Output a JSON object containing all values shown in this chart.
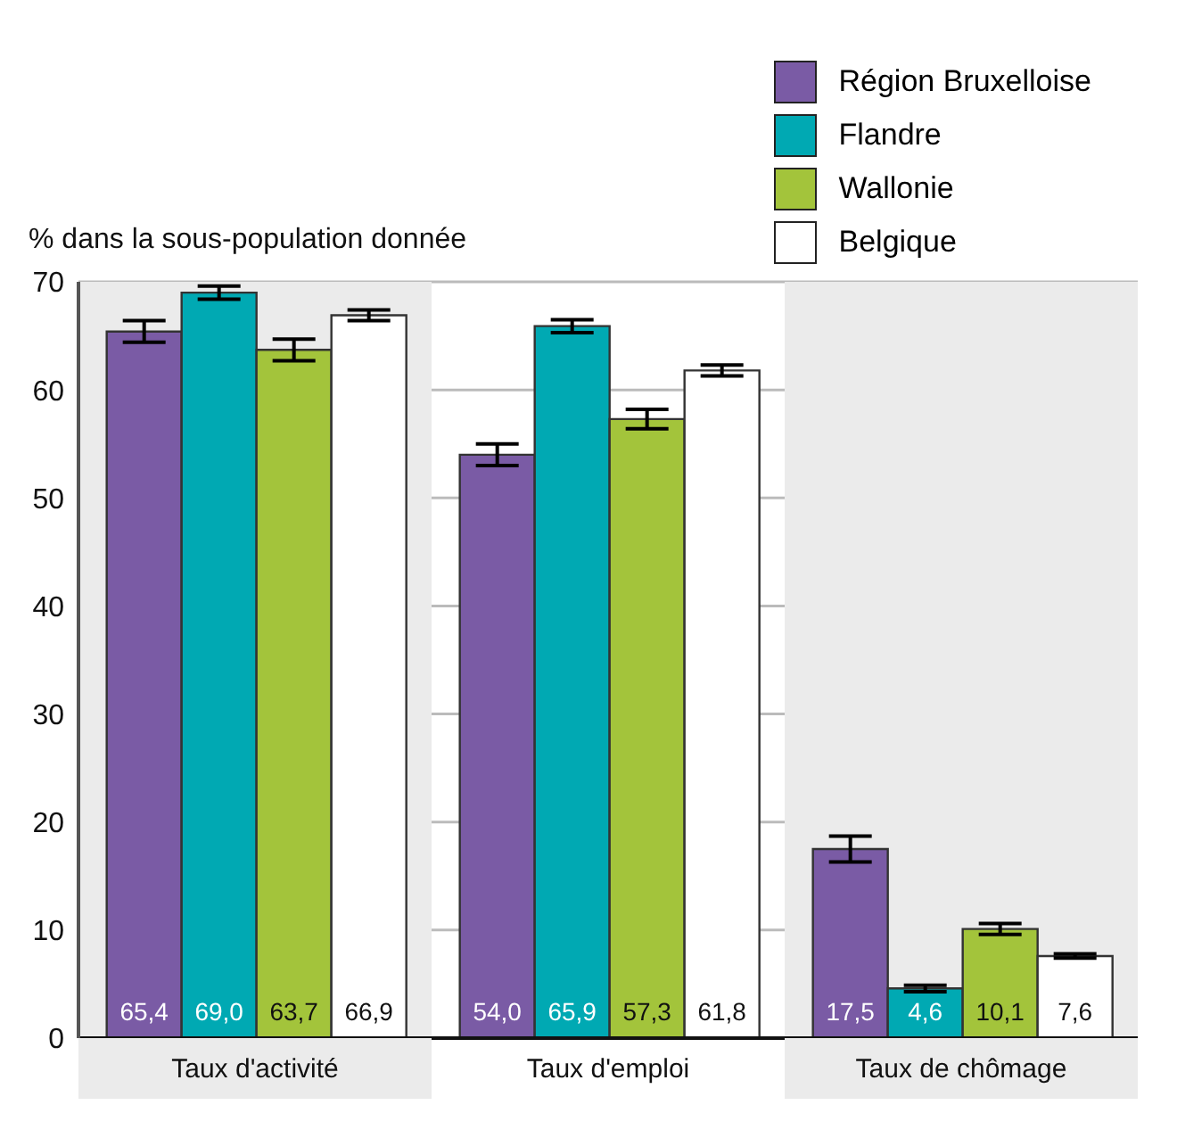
{
  "chart_data": {
    "type": "bar",
    "ylabel": "% dans la sous-population donnée",
    "categories": [
      "Taux d'activité",
      "Taux d'emploi",
      "Taux de chômage"
    ],
    "series": [
      {
        "name": "Région Bruxelloise",
        "color": "#7a5ba5",
        "values": [
          65.4,
          54.0,
          17.5
        ],
        "value_labels": [
          "65,4",
          "54,0",
          "17,5"
        ],
        "errors": [
          1.0,
          1.0,
          1.2
        ]
      },
      {
        "name": "Flandre",
        "color": "#00a9b3",
        "values": [
          69.0,
          65.9,
          4.6
        ],
        "value_labels": [
          "69,0",
          "65,9",
          "4,6"
        ],
        "errors": [
          0.6,
          0.6,
          0.3
        ]
      },
      {
        "name": "Wallonie",
        "color": "#a3c43b",
        "values": [
          63.7,
          57.3,
          10.1
        ],
        "value_labels": [
          "63,7",
          "57,3",
          "10,1"
        ],
        "errors": [
          1.0,
          0.9,
          0.5
        ]
      },
      {
        "name": "Belgique",
        "color": "#ffffff",
        "values": [
          66.9,
          61.8,
          7.6
        ],
        "value_labels": [
          "66,9",
          "61,8",
          "7,6"
        ],
        "errors": [
          0.5,
          0.5,
          0.2
        ]
      }
    ],
    "ylim": [
      0,
      70
    ],
    "yticks": [
      0,
      10,
      20,
      30,
      40,
      50,
      60,
      70
    ],
    "grid": "y",
    "legend": "top right",
    "bands": [
      {
        "axis": "x",
        "from": "Taux d'activité",
        "to": "Taux d'activité",
        "color": "#ebebeb"
      },
      {
        "axis": "x",
        "from": "Taux de chômage",
        "to": "Taux de chômage",
        "color": "#ebebeb"
      }
    ]
  }
}
